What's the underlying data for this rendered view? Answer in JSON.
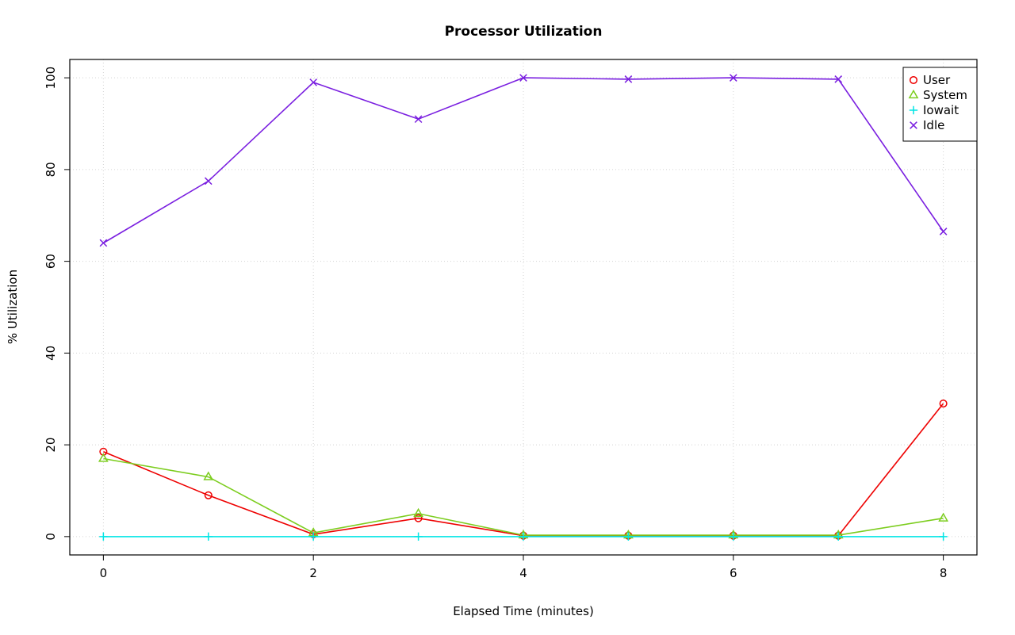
{
  "chart_data": {
    "type": "line",
    "title": "Processor Utilization",
    "xlabel": "Elapsed Time (minutes)",
    "ylabel": "% Utilization",
    "x": [
      0,
      1,
      2,
      3,
      4,
      5,
      6,
      7,
      8
    ],
    "series": [
      {
        "name": "User",
        "color": "#ee0000",
        "marker": "circle",
        "values": [
          18.5,
          9,
          0.5,
          4,
          0.2,
          0.2,
          0.2,
          0.2,
          29
        ]
      },
      {
        "name": "System",
        "color": "#7ccd1e",
        "marker": "triangle",
        "values": [
          17,
          13,
          0.8,
          5,
          0.3,
          0.3,
          0.3,
          0.3,
          4
        ]
      },
      {
        "name": "Iowait",
        "color": "#00e5e5",
        "marker": "plus",
        "values": [
          0,
          0,
          0,
          0,
          0,
          0,
          0,
          0,
          0
        ]
      },
      {
        "name": "Idle",
        "color": "#7a1fe0",
        "marker": "x",
        "values": [
          64,
          77.5,
          99,
          91,
          100,
          99.7,
          100,
          99.7,
          66.5
        ]
      }
    ],
    "xlim": [
      -0.32,
      8.32
    ],
    "ylim": [
      -4,
      104
    ],
    "xticks": [
      0,
      2,
      4,
      6,
      8
    ],
    "yticks": [
      0,
      20,
      40,
      60,
      80,
      100
    ],
    "grid": true,
    "grid_color": "#d3d3d3",
    "legend_position": "top-right"
  }
}
